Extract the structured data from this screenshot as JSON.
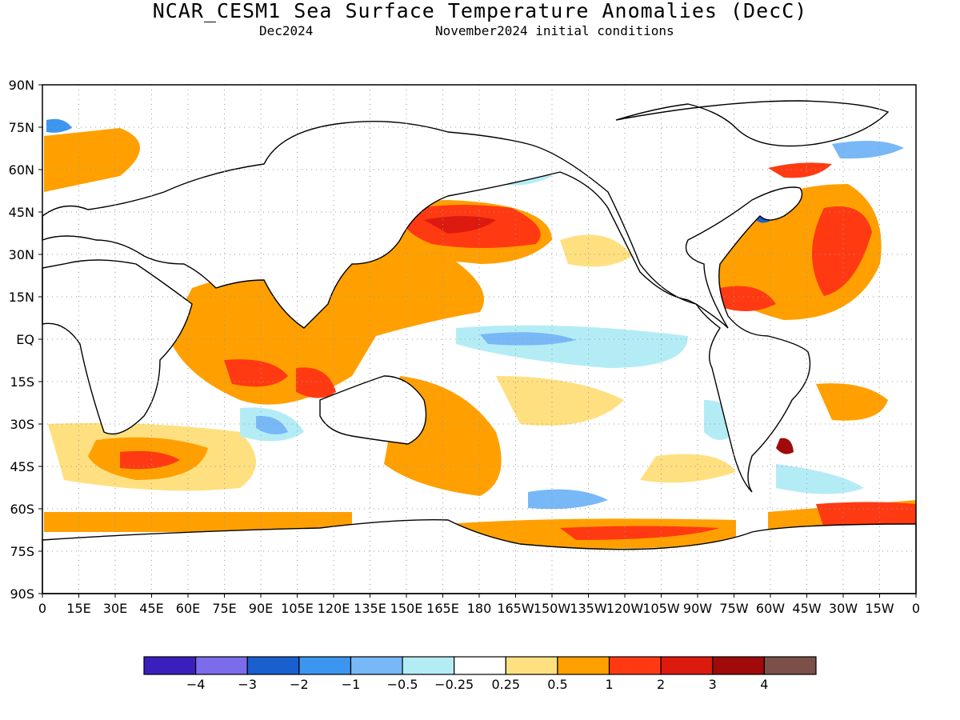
{
  "header": {
    "title": "NCAR_CESM1 Sea Surface Temperature Anomalies (DecC)",
    "target_month": "Dec2024",
    "initial_conditions": "November2024 initial conditions"
  },
  "map": {
    "lat_labels": [
      "90N",
      "75N",
      "60N",
      "45N",
      "30N",
      "15N",
      "EQ",
      "15S",
      "30S",
      "45S",
      "60S",
      "75S",
      "90S"
    ],
    "lon_labels": [
      "0",
      "15E",
      "30E",
      "45E",
      "60E",
      "75E",
      "90E",
      "105E",
      "120E",
      "135E",
      "150E",
      "165E",
      "180",
      "165W",
      "150W",
      "135W",
      "120W",
      "105W",
      "90W",
      "75W",
      "60W",
      "45W",
      "30W",
      "15W",
      "0"
    ],
    "lat_range": [
      -90,
      90
    ],
    "lon_range": [
      0,
      360
    ],
    "grid": "dotted"
  },
  "colorbar": {
    "colors": [
      "#3a1fbd",
      "#7b6cec",
      "#1a5fd0",
      "#3c96f0",
      "#78b8f6",
      "#b4ecf6",
      "#ffffff",
      "#ffe080",
      "#ffa000",
      "#ff3a12",
      "#dd1a10",
      "#a00a0a",
      "#7a5048"
    ],
    "labels": [
      "−4",
      "−3",
      "−2",
      "−1",
      "−0.5",
      "−0.25",
      "0.25",
      "0.5",
      "1",
      "2",
      "3",
      "4"
    ]
  }
}
